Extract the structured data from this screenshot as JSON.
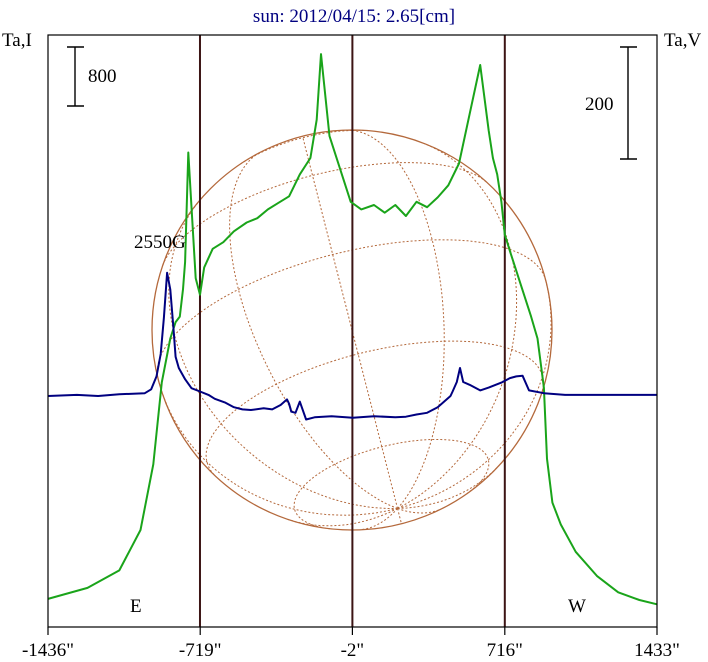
{
  "chart_data": {
    "type": "line",
    "title": "sun: 2012/04/15: 2.65[cm]",
    "left_axis_label": "Ta,I",
    "right_axis_label": "Ta,V",
    "x_ticks": [
      {
        "value": -1436,
        "label": "-1436\""
      },
      {
        "value": -719,
        "label": "-719\""
      },
      {
        "value": -2,
        "label": "-2\""
      },
      {
        "value": 716,
        "label": "716\""
      },
      {
        "value": 1433,
        "label": "1433\""
      }
    ],
    "xlim": [
      -1436,
      1433
    ],
    "scale_bar_left": "800",
    "scale_bar_right": "200",
    "annotation_field": "2550G",
    "label_east": "E",
    "label_west": "W",
    "vertical_markers": [
      -720,
      -2,
      716
    ],
    "colors": {
      "intensity": "#1aa41a",
      "polarization": "#000080",
      "disk": "#b4693c",
      "frame": "#000000",
      "markers": "#3c1414",
      "title": "#000080"
    },
    "series": [
      {
        "name": "Ta,I",
        "x": [
          -1436,
          -1250,
          -1100,
          -1000,
          -940,
          -900,
          -860,
          -835,
          -815,
          -800,
          -790,
          -775,
          -760,
          -740,
          -720,
          -700,
          -660,
          -610,
          -560,
          -500,
          -450,
          -400,
          -350,
          -300,
          -250,
          -200,
          -170,
          -150,
          -110,
          -60,
          -10,
          40,
          100,
          150,
          200,
          250,
          300,
          350,
          400,
          450,
          500,
          550,
          600,
          640,
          660,
          680,
          700,
          716,
          740,
          790,
          840,
          870,
          900,
          915,
          940,
          980,
          1050,
          1150,
          1250,
          1350,
          1433
        ],
        "y": [
          120,
          220,
          380,
          750,
          1350,
          2100,
          2500,
          2650,
          2700,
          2950,
          3200,
          4200,
          3700,
          3050,
          2900,
          3150,
          3320,
          3380,
          3480,
          3560,
          3600,
          3680,
          3740,
          3800,
          4000,
          4150,
          4500,
          5100,
          4350,
          4050,
          3750,
          3680,
          3720,
          3650,
          3720,
          3620,
          3750,
          3700,
          3790,
          3900,
          4100,
          4550,
          5000,
          4400,
          4150,
          4000,
          3750,
          3450,
          3300,
          3000,
          2700,
          2500,
          2050,
          1400,
          1000,
          800,
          550,
          330,
          180,
          110,
          70
        ]
      },
      {
        "name": "Ta,V",
        "x": [
          -1436,
          -1300,
          -1200,
          -1100,
          -980,
          -950,
          -925,
          -905,
          -890,
          -875,
          -860,
          -845,
          -835,
          -820,
          -790,
          -760,
          -720,
          -680,
          -650,
          -600,
          -560,
          -520,
          -480,
          -420,
          -380,
          -340,
          -310,
          -300,
          -290,
          -270,
          -250,
          -220,
          -180,
          -100,
          0,
          100,
          200,
          250,
          300,
          350,
          400,
          430,
          460,
          470,
          490,
          505,
          520,
          550,
          600,
          640,
          700,
          740,
          770,
          800,
          830,
          900,
          1000,
          1100,
          1200,
          1300,
          1433
        ],
        "y": [
          0,
          2,
          0,
          3,
          5,
          12,
          35,
          75,
          140,
          220,
          190,
          120,
          70,
          50,
          30,
          14,
          8,
          2,
          -5,
          -12,
          -20,
          -24,
          -25,
          -22,
          -24,
          -16,
          -6,
          -14,
          -28,
          -30,
          -10,
          -42,
          -38,
          -36,
          -39,
          -36,
          -38,
          -37,
          -33,
          -30,
          -20,
          -10,
          0,
          8,
          25,
          50,
          25,
          20,
          10,
          15,
          24,
          32,
          35,
          36,
          10,
          5,
          2,
          2,
          2,
          2,
          2
        ]
      }
    ]
  }
}
